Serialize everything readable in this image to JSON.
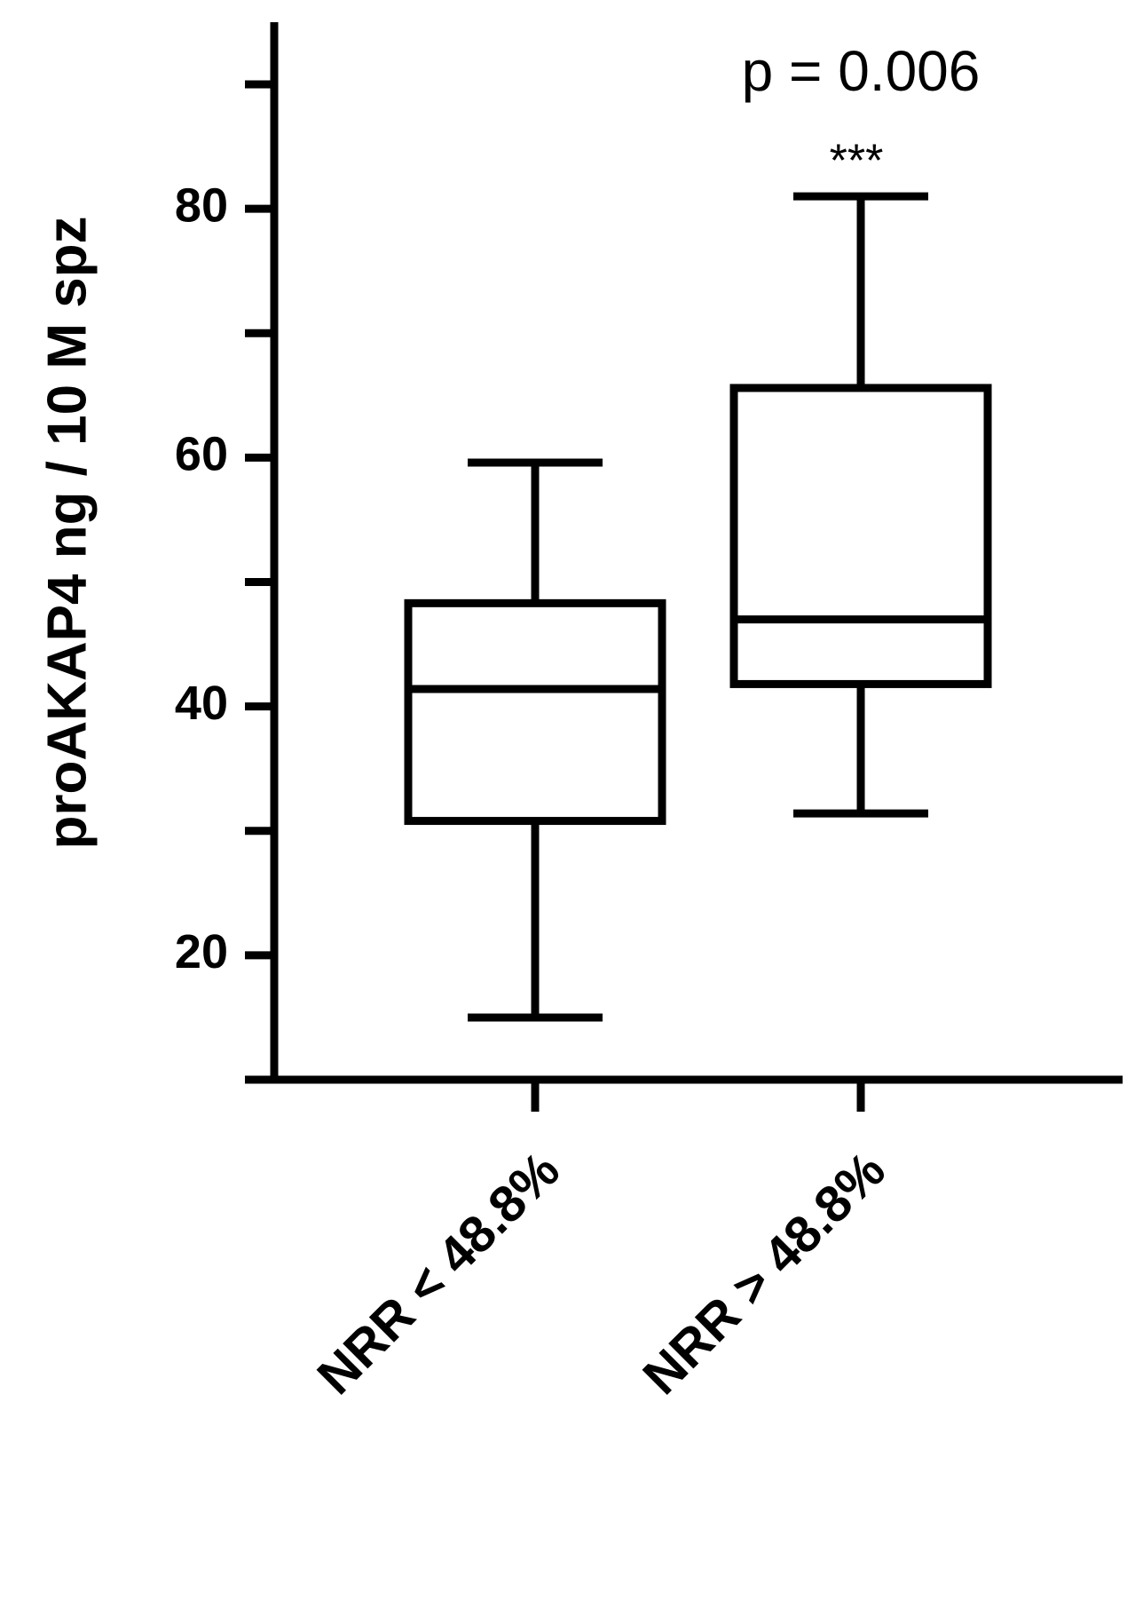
{
  "chart_data": {
    "type": "box",
    "y_label": "proAKAP4 ng / 10 M spz",
    "annotations": [
      "p = 0.006",
      "***"
    ],
    "categories": [
      "NRR < 48.8%",
      "NRR > 48.8%"
    ],
    "boxes": [
      {
        "min": 15,
        "q1": 30.8,
        "median": 41.4,
        "q3": 48.3,
        "max": 59.6
      },
      {
        "min": 31.4,
        "q1": 41.8,
        "median": 47,
        "q3": 65.6,
        "max": 81
      }
    ],
    "color": "#000000",
    "ylim": [
      10,
      95
    ],
    "yticks": [
      20,
      40,
      60,
      80
    ],
    "yminor_ticks": [
      30,
      50,
      70,
      90
    ]
  }
}
